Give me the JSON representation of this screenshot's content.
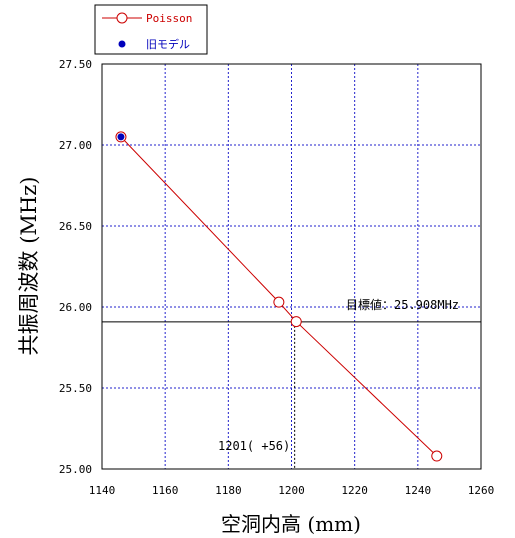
{
  "chart_data": {
    "type": "line",
    "xlabel": "空洞内高 (mm)",
    "ylabel": "共振周波数 (MHz)",
    "xlim": [
      1140,
      1260
    ],
    "ylim": [
      25.0,
      27.5
    ],
    "xticks": [
      1140,
      1160,
      1180,
      1200,
      1220,
      1240,
      1260
    ],
    "xtick_labels": [
      "1140",
      "1160",
      "1180",
      "1200",
      "1220",
      "1240",
      "1260"
    ],
    "yticks": [
      25.0,
      25.5,
      26.0,
      26.5,
      27.0,
      27.5
    ],
    "ytick_labels": [
      "25.00",
      "25.50",
      "26.00",
      "26.50",
      "27.00",
      "27.50"
    ],
    "grid": true,
    "legend_position": "top-left",
    "series": [
      {
        "name": "Poisson",
        "color": "#cc0000",
        "marker": "open-circle",
        "x": [
          1146,
          1196,
          1201.5,
          1246
        ],
        "y": [
          27.05,
          26.03,
          25.91,
          25.08
        ]
      },
      {
        "name": "旧モデル",
        "color": "#0000bb",
        "marker": "filled-circle",
        "x": [
          1146
        ],
        "y": [
          27.05
        ]
      }
    ],
    "reference_line": {
      "y": 25.908,
      "label": "目標値：25.908MHz"
    },
    "reference_drop": {
      "x": 1201,
      "label": "1201( +56)"
    }
  }
}
